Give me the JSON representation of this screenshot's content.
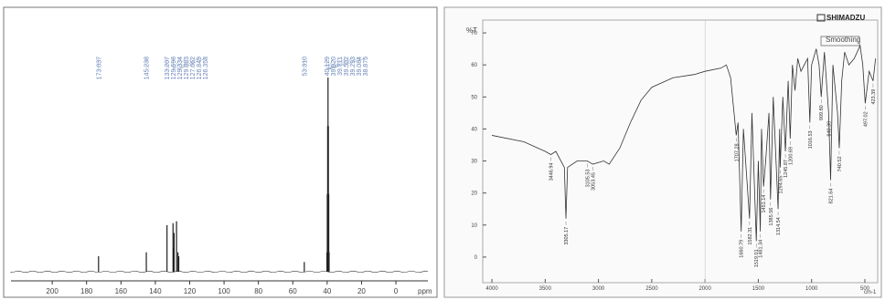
{
  "chart_data": [
    {
      "type": "stem",
      "xlabel": "ppm",
      "xlim": [
        224,
        -18.6
      ],
      "xticks": [
        200,
        180,
        160,
        140,
        120,
        100,
        80,
        60,
        40,
        20,
        0
      ],
      "ylim": [
        0,
        100
      ],
      "color": "#222222",
      "x": [
        {
          "value": 173.037,
          "label": "173.037"
        },
        {
          "value": 145.238,
          "label": "145.238"
        },
        {
          "value": 133.207,
          "label": "133.207"
        },
        {
          "value": 129.698,
          "label": "129.698"
        },
        {
          "value": 129.334,
          "label": "129.334"
        },
        {
          "value": 129.083,
          "label": "129.083"
        },
        {
          "value": 127.662,
          "label": "127.662"
        },
        {
          "value": 126.849,
          "label": "126.849"
        },
        {
          "value": 126.358,
          "label": "126.358"
        },
        {
          "value": 53.31,
          "label": "53.310"
        },
        {
          "value": 40.129,
          "label": "40.129"
        },
        {
          "value": 39.92,
          "label": "39.920"
        },
        {
          "value": 39.711,
          "label": "39.711"
        },
        {
          "value": 39.502,
          "label": "39.502"
        },
        {
          "value": 39.293,
          "label": "39.293"
        },
        {
          "value": 39.084,
          "label": "39.084"
        },
        {
          "value": 38.875,
          "label": "38.875"
        }
      ],
      "values": [
        8,
        10,
        24,
        25,
        12,
        20,
        26,
        10,
        8,
        5,
        10,
        40,
        75,
        100,
        75,
        40,
        10
      ]
    },
    {
      "type": "line",
      "brand": "SHIMADZU",
      "ylabel": "%T",
      "note": "Smoothing",
      "xlabel": "cm-1",
      "xlim": [
        4086,
        380
      ],
      "xticks": [
        4000,
        3500,
        3000,
        2500,
        2000,
        1500,
        1000,
        500
      ],
      "ylim": [
        -8,
        74
      ],
      "yticks": [
        0,
        10,
        20,
        30,
        40,
        50,
        60,
        70
      ],
      "color": "#333333",
      "x": [
        4000,
        3700,
        3500,
        3446.94,
        3400,
        3320,
        3305.17,
        3290,
        3200,
        3105.53,
        3053.45,
        2950,
        2900,
        2800,
        2700,
        2600,
        2500,
        2300,
        2100,
        2000,
        1850,
        1800,
        1760,
        1707.28,
        1690,
        1660.79,
        1640,
        1582.31,
        1560,
        1519.01,
        1500,
        1481.34,
        1470,
        1451.14,
        1431.17,
        1400,
        1385.56,
        1360,
        1314.54,
        1300,
        1294.65,
        1270,
        1245.87,
        1220,
        1200.69,
        1180,
        1155.8,
        1130,
        1100,
        1037.72,
        1016.53,
        1000,
        956.73,
        930,
        909.8,
        880,
        840.39,
        821.64,
        800,
        756.71,
        740.52,
        717.55,
        690,
        650,
        600,
        544.91,
        520,
        497.02,
        460,
        423.39,
        400
      ],
      "values": [
        38,
        36,
        33,
        32,
        33,
        28,
        12,
        28,
        30,
        30,
        29,
        30,
        29,
        34,
        42,
        49,
        53,
        56,
        57,
        58,
        59,
        60,
        56,
        38,
        42,
        8,
        40,
        12,
        45,
        5,
        30,
        8,
        40,
        22,
        30,
        45,
        18,
        50,
        15,
        40,
        28,
        50,
        33,
        55,
        37,
        60,
        52,
        62,
        58,
        62,
        42,
        60,
        65,
        60,
        50,
        64,
        45,
        24,
        60,
        45,
        34,
        55,
        64,
        60,
        62,
        66,
        60,
        48,
        58,
        55,
        62
      ],
      "peaks": [
        {
          "value": 3446.94,
          "label": "3446.94"
        },
        {
          "value": 3305.17,
          "label": "3305.17"
        },
        {
          "value": 3105.53,
          "label": "3105.53"
        },
        {
          "value": 3053.45,
          "label": "3053.45"
        },
        {
          "value": 1707.28,
          "label": "1707.28"
        },
        {
          "value": 1660.79,
          "label": "1660.79"
        },
        {
          "value": 1582.31,
          "label": "1582.31"
        },
        {
          "value": 1519.01,
          "label": "1519.01"
        },
        {
          "value": 1481.34,
          "label": "1481.34"
        },
        {
          "value": 1451.14,
          "label": "1451.14"
        },
        {
          "value": 1385.56,
          "label": "1385.56"
        },
        {
          "value": 1314.54,
          "label": "1314.54"
        },
        {
          "value": 1294.65,
          "label": "1294.65"
        },
        {
          "value": 1245.87,
          "label": "1245.87"
        },
        {
          "value": 1200.69,
          "label": "1200.69"
        },
        {
          "value": 1016.53,
          "label": "1016.53"
        },
        {
          "value": 909.8,
          "label": "909.80"
        },
        {
          "value": 840.39,
          "label": "840.39"
        },
        {
          "value": 821.64,
          "label": "821.64"
        },
        {
          "value": 740.52,
          "label": "740.52"
        },
        {
          "value": 497.02,
          "label": "497.02"
        },
        {
          "value": 423.39,
          "label": "423.39"
        }
      ]
    }
  ]
}
